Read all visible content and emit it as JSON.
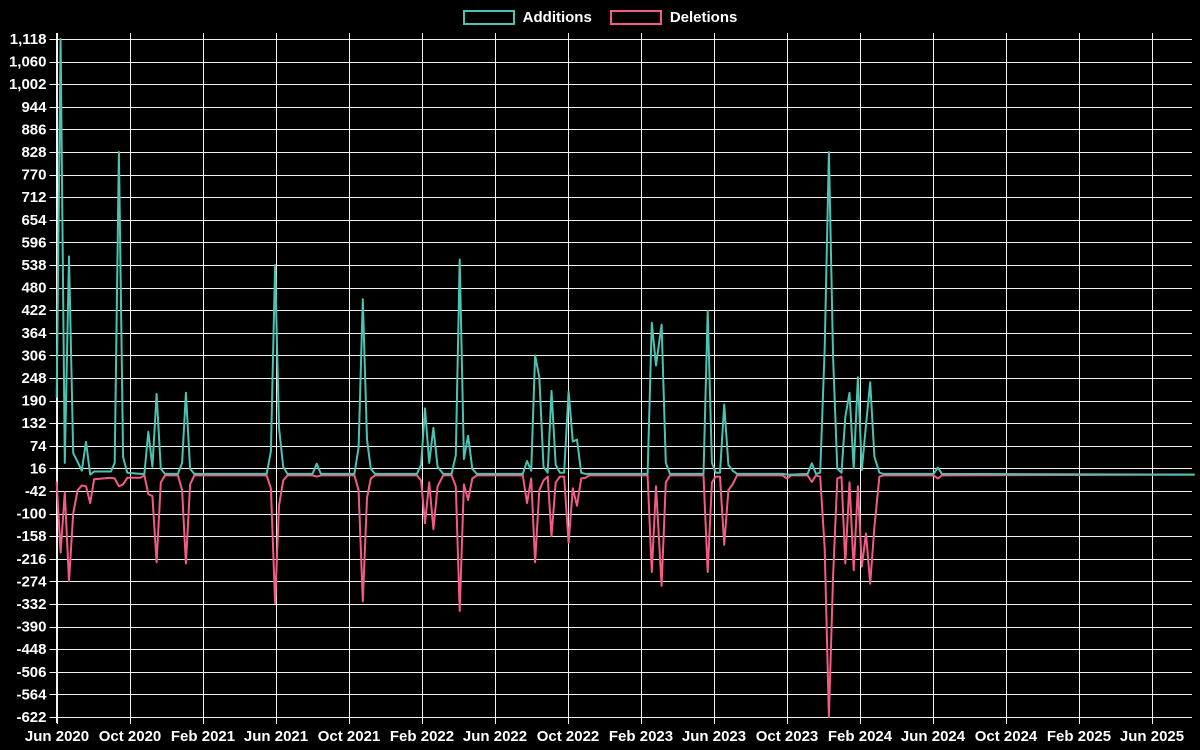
{
  "page": {
    "background": "#000000"
  },
  "legend": {
    "items": [
      {
        "label": "Additions"
      },
      {
        "label": "Deletions"
      }
    ]
  },
  "chart_data": {
    "type": "line",
    "title": "",
    "xlabel": "",
    "ylabel": "",
    "grid": true,
    "legend_position": "top-center",
    "ylim": [
      -622,
      1118
    ],
    "y_tick_step": 58,
    "colors": {
      "background": "#000000",
      "grid": "#f2f2f2",
      "axis": "#f2f2f2",
      "text": "#ffffff"
    },
    "series": [
      {
        "name": "Additions",
        "color": "#4cc3b2"
      },
      {
        "name": "Deletions",
        "color": "#f25c84"
      }
    ],
    "y_axis": {
      "tick_values": [
        1118,
        1060,
        1002,
        944,
        886,
        828,
        770,
        712,
        654,
        596,
        538,
        480,
        422,
        364,
        306,
        248,
        190,
        132,
        74,
        16,
        -42,
        -100,
        -158,
        -216,
        -274,
        -332,
        -390,
        -448,
        -506,
        -564,
        -622
      ],
      "tick_labels": [
        "1,118",
        "1,060",
        "1,002",
        "944",
        "886",
        "828",
        "770",
        "712",
        "654",
        "596",
        "538",
        "480",
        "422",
        "364",
        "306",
        "248",
        "190",
        "132",
        "74",
        "16",
        "-42",
        "-100",
        "-158",
        "-216",
        "-274",
        "-332",
        "-390",
        "-448",
        "-506",
        "-564",
        "-622"
      ]
    },
    "x_axis": {
      "ticks": [
        {
          "label": "Jun 2020",
          "date": "2020-06-01"
        },
        {
          "label": "Oct 2020",
          "date": "2020-10-01"
        },
        {
          "label": "Feb 2021",
          "date": "2021-02-01"
        },
        {
          "label": "Jun 2021",
          "date": "2021-06-01"
        },
        {
          "label": "Oct 2021",
          "date": "2021-10-01"
        },
        {
          "label": "Feb 2022",
          "date": "2022-02-01"
        },
        {
          "label": "Jun 2022",
          "date": "2022-06-01"
        },
        {
          "label": "Oct 2022",
          "date": "2022-10-01"
        },
        {
          "label": "Feb 2023",
          "date": "2023-02-01"
        },
        {
          "label": "Jun 2023",
          "date": "2023-06-01"
        },
        {
          "label": "Oct 2023",
          "date": "2023-10-01"
        },
        {
          "label": "Feb 2024",
          "date": "2024-02-01"
        },
        {
          "label": "Jun 2024",
          "date": "2024-06-01"
        },
        {
          "label": "Oct 2024",
          "date": "2024-10-01"
        },
        {
          "label": "Feb 2025",
          "date": "2025-02-01"
        },
        {
          "label": "Jun 2025",
          "date": "2025-06-01"
        }
      ]
    },
    "points_format": [
      "week_date",
      "additions",
      "deletions_negative"
    ],
    "points": [
      [
        "2020-05-31",
        200,
        -20
      ],
      [
        "2020-06-07",
        1118,
        -200
      ],
      [
        "2020-06-14",
        30,
        -45
      ],
      [
        "2020-06-21",
        560,
        -274
      ],
      [
        "2020-06-28",
        55,
        -100
      ],
      [
        "2020-07-05",
        33,
        -40
      ],
      [
        "2020-07-12",
        10,
        -28
      ],
      [
        "2020-07-19",
        84,
        -30
      ],
      [
        "2020-07-26",
        0,
        -73
      ],
      [
        "2020-08-02",
        8,
        -12
      ],
      [
        "2020-08-30",
        8,
        -8
      ],
      [
        "2020-09-06",
        30,
        -10
      ],
      [
        "2020-09-13",
        828,
        -30
      ],
      [
        "2020-09-20",
        45,
        -25
      ],
      [
        "2020-09-27",
        5,
        -8
      ],
      [
        "2020-10-18",
        2,
        -8
      ],
      [
        "2020-10-25",
        2,
        -2
      ],
      [
        "2020-11-01",
        110,
        -50
      ],
      [
        "2020-11-08",
        20,
        -55
      ],
      [
        "2020-11-15",
        207,
        -225
      ],
      [
        "2020-11-22",
        15,
        -20
      ],
      [
        "2020-11-29",
        2,
        -2
      ],
      [
        "2020-12-20",
        2,
        -2
      ],
      [
        "2020-12-27",
        30,
        -40
      ],
      [
        "2021-01-03",
        210,
        -228
      ],
      [
        "2021-01-10",
        15,
        -25
      ],
      [
        "2021-01-17",
        2,
        -2
      ],
      [
        "2021-05-16",
        2,
        -2
      ],
      [
        "2021-05-23",
        60,
        -35
      ],
      [
        "2021-05-30",
        538,
        -330
      ],
      [
        "2021-06-06",
        120,
        -80
      ],
      [
        "2021-06-13",
        20,
        -15
      ],
      [
        "2021-06-20",
        2,
        -2
      ],
      [
        "2021-08-01",
        2,
        -2
      ],
      [
        "2021-08-08",
        28,
        -5
      ],
      [
        "2021-08-15",
        2,
        -2
      ],
      [
        "2021-10-10",
        2,
        -2
      ],
      [
        "2021-10-17",
        70,
        -40
      ],
      [
        "2021-10-24",
        450,
        -325
      ],
      [
        "2021-10-31",
        90,
        -60
      ],
      [
        "2021-11-07",
        15,
        -10
      ],
      [
        "2021-11-14",
        2,
        -2
      ],
      [
        "2022-01-23",
        2,
        -2
      ],
      [
        "2022-01-30",
        25,
        -15
      ],
      [
        "2022-02-06",
        170,
        -125
      ],
      [
        "2022-02-13",
        30,
        -20
      ],
      [
        "2022-02-20",
        120,
        -140
      ],
      [
        "2022-02-27",
        20,
        -30
      ],
      [
        "2022-03-06",
        2,
        -2
      ],
      [
        "2022-03-20",
        2,
        -2
      ],
      [
        "2022-03-27",
        50,
        -30
      ],
      [
        "2022-04-03",
        552,
        -350
      ],
      [
        "2022-04-10",
        40,
        -25
      ],
      [
        "2022-04-17",
        100,
        -65
      ],
      [
        "2022-04-24",
        15,
        -10
      ],
      [
        "2022-05-01",
        2,
        -2
      ],
      [
        "2022-07-17",
        2,
        -2
      ],
      [
        "2022-07-24",
        35,
        -73
      ],
      [
        "2022-07-31",
        10,
        -10
      ],
      [
        "2022-08-07",
        306,
        -225
      ],
      [
        "2022-08-14",
        250,
        -40
      ],
      [
        "2022-08-21",
        20,
        -15
      ],
      [
        "2022-08-28",
        5,
        -5
      ],
      [
        "2022-09-04",
        215,
        -158
      ],
      [
        "2022-09-11",
        25,
        -20
      ],
      [
        "2022-09-18",
        5,
        -5
      ],
      [
        "2022-09-25",
        5,
        -5
      ],
      [
        "2022-10-02",
        213,
        -175
      ],
      [
        "2022-10-09",
        85,
        -35
      ],
      [
        "2022-10-16",
        90,
        -80
      ],
      [
        "2022-10-23",
        5,
        -10
      ],
      [
        "2022-10-30",
        2,
        -8
      ],
      [
        "2022-11-06",
        2,
        -2
      ],
      [
        "2023-02-12",
        2,
        -2
      ],
      [
        "2023-02-19",
        390,
        -250
      ],
      [
        "2023-02-26",
        280,
        -30
      ],
      [
        "2023-03-05",
        385,
        -285
      ],
      [
        "2023-03-12",
        30,
        -20
      ],
      [
        "2023-03-19",
        2,
        -2
      ],
      [
        "2023-05-14",
        2,
        -2
      ],
      [
        "2023-05-21",
        420,
        -250
      ],
      [
        "2023-05-28",
        30,
        -20
      ],
      [
        "2023-06-04",
        5,
        -5
      ],
      [
        "2023-06-11",
        5,
        -5
      ],
      [
        "2023-06-18",
        180,
        -180
      ],
      [
        "2023-06-25",
        25,
        -40
      ],
      [
        "2023-07-02",
        10,
        -24
      ],
      [
        "2023-07-09",
        2,
        -2
      ],
      [
        "2023-09-24",
        2,
        -2
      ],
      [
        "2023-10-01",
        0,
        -10
      ],
      [
        "2023-10-08",
        0,
        -2
      ],
      [
        "2023-11-05",
        2,
        -2
      ],
      [
        "2023-11-12",
        29,
        -19
      ],
      [
        "2023-11-19",
        2,
        -2
      ],
      [
        "2023-11-26",
        5,
        -5
      ],
      [
        "2023-12-03",
        325,
        -190
      ],
      [
        "2023-12-10",
        828,
        -622
      ],
      [
        "2023-12-17",
        300,
        -260
      ],
      [
        "2023-12-24",
        15,
        -10
      ],
      [
        "2023-12-31",
        5,
        -5
      ],
      [
        "2024-01-07",
        148,
        -228
      ],
      [
        "2024-01-14",
        210,
        -20
      ],
      [
        "2024-01-21",
        16,
        -245
      ],
      [
        "2024-01-28",
        250,
        -30
      ],
      [
        "2024-02-04",
        12,
        -236
      ],
      [
        "2024-02-11",
        128,
        -151
      ],
      [
        "2024-02-18",
        237,
        -280
      ],
      [
        "2024-02-25",
        46,
        -134
      ],
      [
        "2024-03-03",
        5,
        -5
      ],
      [
        "2024-03-10",
        2,
        -2
      ],
      [
        "2024-06-02",
        2,
        -2
      ],
      [
        "2024-06-09",
        18,
        -10
      ],
      [
        "2024-06-16",
        2,
        -2
      ],
      [
        "2025-08-10",
        0,
        0
      ]
    ]
  }
}
